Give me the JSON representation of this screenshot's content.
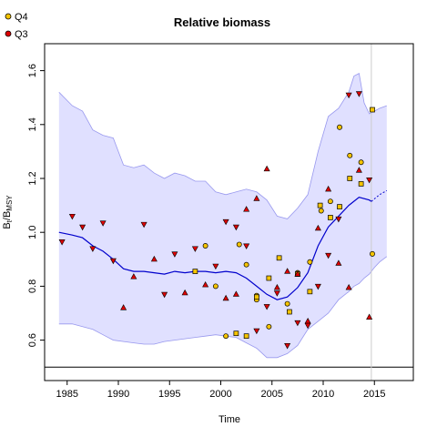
{
  "chart_data": {
    "type": "line",
    "title": "Relative biomass",
    "xlabel": "Time",
    "ylabel": "B_t/B_MSY",
    "xlim": [
      1982.8,
      2018.8
    ],
    "ylim": [
      0.45,
      1.7
    ],
    "x_ticks": [
      1985,
      1990,
      1995,
      2000,
      2005,
      2010,
      2015
    ],
    "y_ticks": [
      0.6,
      0.8,
      1.0,
      1.2,
      1.4,
      1.6
    ],
    "x_tick_labels": [
      "1985",
      "1990",
      "1995",
      "2000",
      "2005",
      "2010",
      "2015"
    ],
    "y_tick_labels": [
      "0.6",
      "0.8",
      "1.0",
      "1.2",
      "1.4",
      "1.6"
    ],
    "legend_position": "top-left",
    "reference_line_y": 0.5,
    "current_year_line_x": 2014.7,
    "colors": {
      "band_fill": "#e0e0ff",
      "band_edge": "#9898ee",
      "estimate_line": "#0000cc",
      "reference_line": "#000000",
      "current_year_line": "#cccccc",
      "q4_fill": "#f5c400",
      "q3_fill": "#dd0000",
      "marker_edge": "#000000"
    },
    "series": [
      {
        "name": "Estimate",
        "kind": "line",
        "x": [
          1984.2,
          1985.5,
          1986.5,
          1987.5,
          1988.5,
          1989.5,
          1990.5,
          1991.5,
          1992.5,
          1993.5,
          1994.5,
          1995.5,
          1996.5,
          1997.5,
          1998.5,
          1999.5,
          2000.5,
          2001.5,
          2002.5,
          2003.5,
          2004.5,
          2005.5,
          2006.5,
          2007.5,
          2008.5,
          2009.5,
          2010.5,
          2011.5,
          2012.5,
          2013.5,
          2014.5,
          2014.7
        ],
        "y": [
          1.0,
          0.99,
          0.98,
          0.95,
          0.93,
          0.9,
          0.865,
          0.855,
          0.855,
          0.85,
          0.845,
          0.855,
          0.85,
          0.855,
          0.855,
          0.85,
          0.855,
          0.85,
          0.83,
          0.8,
          0.77,
          0.75,
          0.76,
          0.795,
          0.85,
          0.95,
          1.02,
          1.06,
          1.1,
          1.13,
          1.12,
          1.115
        ]
      },
      {
        "name": "Prediction",
        "kind": "dashed-line",
        "x": [
          2014.7,
          2015.5,
          2016.2
        ],
        "y": [
          1.115,
          1.14,
          1.155
        ]
      },
      {
        "name": "Confidence band",
        "kind": "band",
        "x": [
          1984.2,
          1985.5,
          1986.5,
          1987.5,
          1988.5,
          1989.5,
          1990.5,
          1991.5,
          1992.5,
          1993.5,
          1994.5,
          1995.5,
          1996.5,
          1997.5,
          1998.5,
          1999.5,
          2000.5,
          2001.5,
          2002.5,
          2003.5,
          2004.5,
          2005.5,
          2006.5,
          2007.5,
          2008.5,
          2009.5,
          2010.5,
          2011.5,
          2012.5,
          2013.0,
          2013.5,
          2014.0,
          2014.5,
          2015.0,
          2015.5,
          2016.2
        ],
        "upper": [
          1.52,
          1.47,
          1.45,
          1.38,
          1.36,
          1.35,
          1.25,
          1.24,
          1.25,
          1.22,
          1.2,
          1.22,
          1.21,
          1.19,
          1.19,
          1.15,
          1.14,
          1.15,
          1.16,
          1.15,
          1.12,
          1.06,
          1.05,
          1.09,
          1.14,
          1.3,
          1.43,
          1.46,
          1.52,
          1.58,
          1.59,
          1.48,
          1.44,
          1.45,
          1.46,
          1.47
        ],
        "lower": [
          0.66,
          0.66,
          0.65,
          0.64,
          0.62,
          0.6,
          0.595,
          0.59,
          0.585,
          0.585,
          0.595,
          0.6,
          0.605,
          0.61,
          0.615,
          0.62,
          0.615,
          0.61,
          0.59,
          0.57,
          0.535,
          0.535,
          0.55,
          0.58,
          0.64,
          0.67,
          0.7,
          0.75,
          0.78,
          0.8,
          0.81,
          0.83,
          0.845,
          0.87,
          0.89,
          0.91
        ]
      },
      {
        "name": "Q4",
        "kind": "points",
        "x": [
          1998.5,
          1999.5,
          2000.5,
          2001.8,
          2002.5,
          2003.5,
          2003.5,
          2004.7,
          2006.5,
          2007.5,
          2008.7,
          2009.8,
          2010.7,
          2011.6,
          2012.6,
          2013.7,
          2014.8
        ],
        "y": [
          0.95,
          0.8,
          0.615,
          0.955,
          0.88,
          0.765,
          0.75,
          0.65,
          0.735,
          0.85,
          0.89,
          1.08,
          1.115,
          1.39,
          1.285,
          1.26,
          0.92
        ]
      },
      {
        "name": "Q4 squares",
        "kind": "squares",
        "x": [
          1997.5,
          2001.5,
          2002.5,
          2003.5,
          2004.7,
          2005.7,
          2006.7,
          2007.5,
          2008.7,
          2009.7,
          2010.7,
          2011.6,
          2012.6,
          2013.7,
          2014.8
        ],
        "y": [
          0.855,
          0.625,
          0.615,
          0.76,
          0.83,
          0.905,
          0.705,
          0.845,
          0.78,
          1.1,
          1.055,
          1.095,
          1.2,
          1.18,
          1.455
        ]
      },
      {
        "name": "Q3 triangles up",
        "kind": "tri-up",
        "x": [
          1990.5,
          1991.5,
          1993.5,
          1996.5,
          1998.5,
          2000.5,
          2001.5,
          2002.5,
          2003.5,
          2004.5,
          2005.5,
          2006.5,
          2007.5,
          2008.5,
          2009.5,
          2010.5,
          2011.5,
          2012.5,
          2013.5,
          2014.5
        ],
        "y": [
          0.72,
          0.835,
          0.9,
          0.775,
          0.805,
          0.755,
          0.77,
          1.085,
          1.125,
          1.235,
          0.795,
          0.855,
          0.845,
          0.67,
          1.015,
          1.16,
          0.885,
          0.795,
          1.23,
          0.685
        ]
      },
      {
        "name": "Q3 triangles down",
        "kind": "tri-down",
        "x": [
          1984.5,
          1985.5,
          1986.5,
          1987.5,
          1988.5,
          1989.5,
          1992.5,
          1994.5,
          1995.5,
          1997.5,
          1999.5,
          2000.5,
          2001.5,
          2002.5,
          2003.5,
          2004.5,
          2005.5,
          2006.5,
          2007.5,
          2008.5,
          2009.5,
          2010.5,
          2011.5,
          2012.5,
          2013.5,
          2014.5
        ],
        "y": [
          0.965,
          1.06,
          1.02,
          0.94,
          1.035,
          0.895,
          1.03,
          0.77,
          0.92,
          0.94,
          0.875,
          1.04,
          1.02,
          0.95,
          0.635,
          0.725,
          0.775,
          0.58,
          0.665,
          0.655,
          0.8,
          0.915,
          1.05,
          1.51,
          1.515,
          1.195
        ]
      }
    ],
    "legend": [
      {
        "label": "Q4",
        "color": "#f5c400"
      },
      {
        "label": "Q3",
        "color": "#dd0000"
      }
    ]
  }
}
